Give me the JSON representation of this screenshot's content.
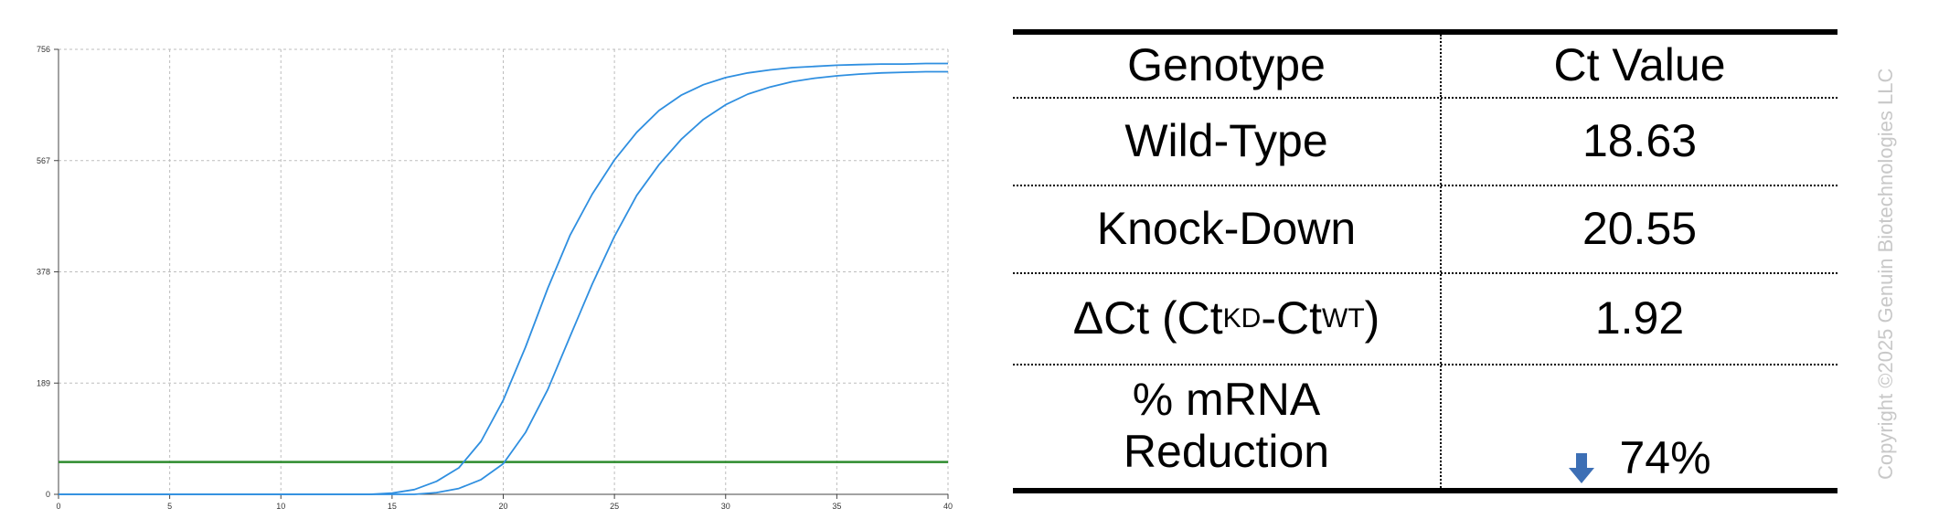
{
  "chart_data": {
    "type": "line",
    "title": "",
    "xlabel": "",
    "ylabel": "",
    "xlim": [
      0,
      40
    ],
    "ylim": [
      0,
      756
    ],
    "x_ticks": [
      0,
      5,
      10,
      15,
      20,
      25,
      30,
      35,
      40
    ],
    "y_ticks": [
      0,
      189,
      378,
      567,
      756
    ],
    "grid": true,
    "legend": "none",
    "threshold": {
      "y": 55,
      "color": "#2e8b2e"
    },
    "series_color": "#2f8fe0",
    "series": [
      {
        "x": [
          0,
          14,
          15,
          16,
          17,
          18,
          19,
          20,
          21,
          22,
          23,
          24,
          25,
          26,
          27,
          28,
          29,
          30,
          31,
          32,
          33,
          34,
          35,
          36,
          37,
          38,
          39,
          40
        ],
        "values": [
          0,
          0,
          2,
          8,
          22,
          45,
          90,
          160,
          250,
          350,
          440,
          510,
          568,
          615,
          652,
          678,
          696,
          708,
          716,
          721,
          725,
          727,
          729,
          730,
          731,
          731,
          732,
          732
        ]
      },
      {
        "x": [
          0,
          16,
          17,
          18,
          19,
          20,
          21,
          22,
          23,
          24,
          25,
          26,
          27,
          28,
          29,
          30,
          31,
          32,
          33,
          34,
          35,
          36,
          37,
          38,
          39,
          40
        ],
        "values": [
          0,
          0,
          3,
          10,
          25,
          52,
          105,
          178,
          268,
          357,
          438,
          508,
          560,
          603,
          637,
          662,
          680,
          692,
          701,
          707,
          711,
          714,
          716,
          717,
          718,
          718
        ]
      }
    ]
  },
  "table": {
    "headers": [
      "Genotype",
      "Ct Value"
    ],
    "rows": [
      {
        "genotype": "Wild-Type",
        "value": "18.63"
      },
      {
        "genotype": "Knock-Down",
        "value": "20.55"
      }
    ],
    "delta": {
      "prefix": "ΔCt (Ct",
      "sub1": "KD",
      "mid": "-Ct",
      "sub2": "WT",
      "suffix": ")",
      "value": "1.92"
    },
    "reduction": {
      "label": "% mRNA\nReduction",
      "value": "74%",
      "arrow_icon": "down-arrow-icon",
      "arrow_color": "#3d6fb5"
    }
  },
  "copyright": "Copyright ©2025 Genuin Biotechnologies LLC"
}
